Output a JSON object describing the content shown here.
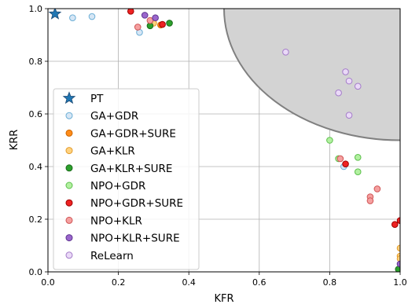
{
  "chart_data": {
    "type": "scatter",
    "xlabel": "KFR",
    "ylabel": "KRR",
    "xlim": [
      0,
      1
    ],
    "ylim": [
      0,
      1
    ],
    "xticks": [
      "0.0",
      "0.2",
      "0.4",
      "0.6",
      "0.8",
      "1.0"
    ],
    "yticks": [
      "0.0",
      "0.2",
      "0.4",
      "0.6",
      "0.8",
      "1.0"
    ],
    "grid": true,
    "legend_position": "lower-left",
    "shaded_region": {
      "shape": "ellipse",
      "center": [
        1.0,
        1.0
      ],
      "radius_x": 0.5,
      "radius_y": 0.5,
      "fill": "#d3d3d3",
      "edge": "#808080"
    },
    "series": [
      {
        "name": "PT",
        "marker": "star",
        "fill": "#1f77b4",
        "edge": "#1f4e79",
        "points": [
          [
            0.02,
            0.98
          ]
        ]
      },
      {
        "name": "GA+GDR",
        "marker": "circle",
        "fill": "#d6e6f5",
        "edge": "#6baed6",
        "points": [
          [
            0.07,
            0.965
          ],
          [
            0.125,
            0.97
          ],
          [
            0.26,
            0.91
          ],
          [
            0.84,
            0.4
          ]
        ]
      },
      {
        "name": "GA+GDR+SURE",
        "marker": "circle",
        "fill": "#ff8c1a",
        "edge": "#cc6600",
        "points": [
          [
            0.32,
            0.938
          ],
          [
            1.0,
            0.0
          ]
        ]
      },
      {
        "name": "GA+KLR",
        "marker": "circle",
        "fill": "#ffd27f",
        "edge": "#e39b2b",
        "points": [
          [
            0.3,
            0.945
          ],
          [
            1.0,
            0.09
          ],
          [
            1.0,
            0.06
          ],
          [
            1.0,
            0.05
          ]
        ]
      },
      {
        "name": "GA+KLR+SURE",
        "marker": "circle",
        "fill": "#2ca02c",
        "edge": "#1b6b1b",
        "points": [
          [
            0.29,
            0.935
          ],
          [
            0.345,
            0.945
          ],
          [
            0.995,
            0.01
          ]
        ]
      },
      {
        "name": "NPO+GDR",
        "marker": "circle",
        "fill": "#b2f0a0",
        "edge": "#5bbf4a",
        "points": [
          [
            0.8,
            0.5
          ],
          [
            0.825,
            0.43
          ],
          [
            0.88,
            0.435
          ],
          [
            0.88,
            0.38
          ]
        ]
      },
      {
        "name": "NPO+GDR+SURE",
        "marker": "circle",
        "fill": "#ee2222",
        "edge": "#a00000",
        "points": [
          [
            0.235,
            0.99
          ],
          [
            0.325,
            0.94
          ],
          [
            0.845,
            0.41
          ],
          [
            0.985,
            0.18
          ],
          [
            1.0,
            0.195
          ]
        ]
      },
      {
        "name": "NPO+KLR",
        "marker": "circle",
        "fill": "#f5a0a0",
        "edge": "#d05555",
        "points": [
          [
            0.255,
            0.93
          ],
          [
            0.29,
            0.955
          ],
          [
            0.83,
            0.43
          ],
          [
            0.915,
            0.285
          ],
          [
            0.915,
            0.27
          ],
          [
            0.935,
            0.315
          ]
        ]
      },
      {
        "name": "NPO+KLR+SURE",
        "marker": "circle",
        "fill": "#9a66cc",
        "edge": "#5e3590",
        "points": [
          [
            0.275,
            0.975
          ],
          [
            0.305,
            0.965
          ],
          [
            1.0,
            0.03
          ]
        ]
      },
      {
        "name": "ReLearn",
        "marker": "circle",
        "fill": "#ead9f7",
        "edge": "#a47cc9",
        "points": [
          [
            0.675,
            0.835
          ],
          [
            0.825,
            0.68
          ],
          [
            0.845,
            0.76
          ],
          [
            0.855,
            0.725
          ],
          [
            0.88,
            0.705
          ],
          [
            0.855,
            0.595
          ]
        ]
      }
    ]
  }
}
